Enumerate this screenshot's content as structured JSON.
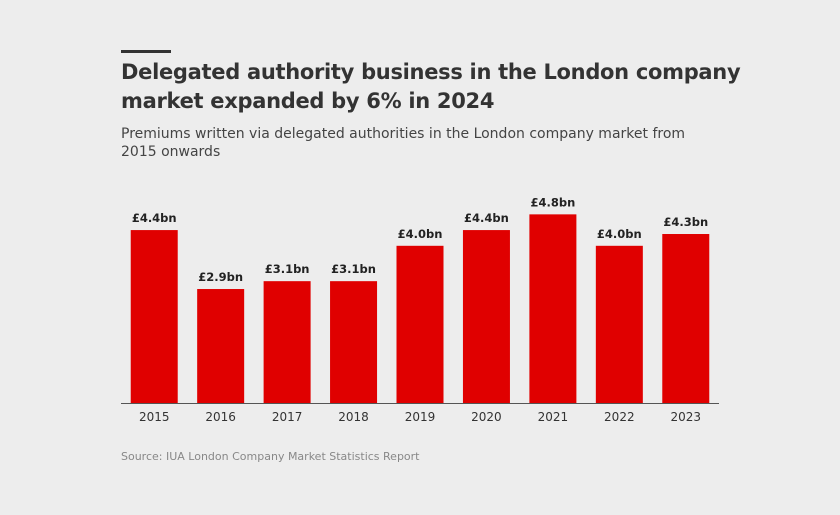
{
  "title": "Delegated authority business in the London company market expanded by 6% in 2024",
  "subtitle": "Premiums written via delegated authorities in the London company market from 2015 onwards",
  "source": "Source: IUA London Company Market Statistics Report",
  "colors": {
    "bar": "#e00000",
    "background": "#ededed",
    "text": "#333333"
  },
  "chart_data": {
    "type": "bar",
    "title": "Delegated authority business in the London company market expanded by 6% in 2024",
    "xlabel": "",
    "ylabel": "",
    "categories": [
      "2015",
      "2016",
      "2017",
      "2018",
      "2019",
      "2020",
      "2021",
      "2022",
      "2023"
    ],
    "values": [
      4.4,
      2.9,
      3.1,
      3.1,
      4.0,
      4.4,
      4.8,
      4.0,
      4.3
    ],
    "data_labels": [
      "£4.4bn",
      "£2.9bn",
      "£3.1bn",
      "£3.1bn",
      "£4.0bn",
      "£4.4bn",
      "£4.8bn",
      "£4.0bn",
      "£4.3bn"
    ],
    "unit": "£bn",
    "ylim": [
      0,
      5
    ],
    "grid": false,
    "legend": "none"
  }
}
